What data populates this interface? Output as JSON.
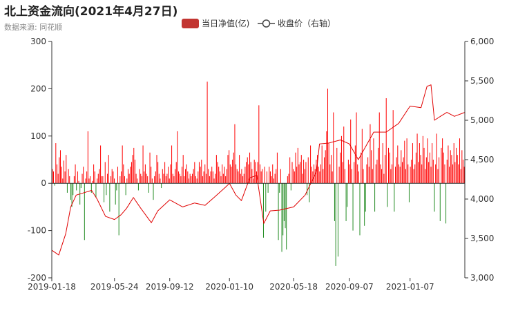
{
  "header": {
    "title": "北上资金流向(2021年4月27日)",
    "subtitle": "数据来源: 同花顺"
  },
  "colors": {
    "positive_bar": "#ff0000",
    "negative_bar": "#228b22",
    "legend_bar": "#c23531",
    "close_line": "#e00000",
    "axis": "#333333"
  },
  "chart_data": {
    "type": "bar",
    "title": "北上资金流向(2021年4月27日)",
    "subtitle": "数据来源: 同花顺",
    "legend": {
      "position": "top-center",
      "items": [
        "当日净值(亿)",
        "收盘价（右轴）"
      ]
    },
    "x_ticks": [
      "2019-01-18",
      "2019-05-24",
      "2019-09-12",
      "2020-01-10",
      "2020-05-18",
      "2020-09-07",
      "2021-01-07"
    ],
    "x_range": [
      "2019-01-18",
      "2021-04-27"
    ],
    "y_left": {
      "min": -200,
      "max": 300,
      "ticks": [
        -200,
        -100,
        0,
        100,
        200,
        300
      ]
    },
    "y_right": {
      "min": 3000,
      "max": 6000,
      "ticks": [
        3000,
        3500,
        4000,
        4500,
        5000,
        5500,
        6000
      ]
    },
    "grid": false,
    "series": [
      {
        "name": "当日净值(亿)",
        "type": "bar",
        "axis": "left",
        "values": [
          30,
          25,
          -5,
          85,
          40,
          20,
          55,
          70,
          35,
          10,
          48,
          25,
          60,
          -20,
          30,
          15,
          -35,
          -50,
          -25,
          15,
          40,
          -15,
          25,
          5,
          -45,
          -10,
          20,
          35,
          -120,
          10,
          25,
          110,
          10,
          15,
          -20,
          5,
          40,
          25,
          -30,
          10,
          20,
          30,
          80,
          15,
          15,
          -40,
          45,
          -25,
          20,
          60,
          -60,
          15,
          30,
          25,
          10,
          -45,
          -15,
          35,
          -110,
          15,
          25,
          80,
          40,
          15,
          -25,
          10,
          30,
          20,
          35,
          45,
          60,
          75,
          50,
          20,
          10,
          -15,
          30,
          20,
          15,
          80,
          25,
          40,
          20,
          15,
          -20,
          65,
          35,
          10,
          -35,
          15,
          25,
          60,
          45,
          20,
          10,
          -10,
          30,
          20,
          45,
          15,
          20,
          35,
          10,
          40,
          80,
          20,
          15,
          30,
          45,
          110,
          25,
          20,
          15,
          35,
          60,
          15,
          30,
          40,
          25,
          10,
          20,
          15,
          20,
          30,
          45,
          15,
          10,
          25,
          45,
          35,
          50,
          15,
          25,
          40,
          20,
          215,
          30,
          15,
          25,
          35,
          25,
          10,
          20,
          60,
          45,
          35,
          25,
          15,
          40,
          20,
          35,
          15,
          30,
          60,
          70,
          40,
          35,
          50,
          65,
          125,
          40,
          30,
          25,
          60,
          20,
          30,
          15,
          20,
          35,
          45,
          55,
          40,
          65,
          45,
          30,
          10,
          50,
          45,
          25,
          45,
          165,
          40,
          25,
          30,
          -115,
          35,
          -60,
          25,
          -20,
          35,
          25,
          15,
          40,
          10,
          20,
          30,
          65,
          -120,
          -20,
          30,
          -145,
          -110,
          -80,
          -95,
          -140,
          15,
          20,
          55,
          -15,
          45,
          30,
          25,
          65,
          35,
          75,
          40,
          45,
          60,
          20,
          50,
          30,
          45,
          -25,
          55,
          -40,
          80,
          35,
          25,
          40,
          30,
          50,
          60,
          35,
          25,
          40,
          80,
          30,
          55,
          70,
          110,
          200,
          85,
          40,
          60,
          25,
          150,
          -80,
          -175,
          75,
          -155,
          35,
          65,
          100,
          45,
          120,
          30,
          -80,
          -50,
          50,
          40,
          135,
          30,
          -100,
          45,
          80,
          150,
          40,
          25,
          -110,
          65,
          115,
          30,
          -90,
          -60,
          40,
          55,
          35,
          125,
          70,
          30,
          95,
          -60,
          40,
          50,
          75,
          150,
          40,
          30,
          85,
          20,
          60,
          180,
          -50,
          75,
          65,
          30,
          40,
          155,
          -60,
          35,
          55,
          80,
          40,
          35,
          70,
          45,
          55,
          90,
          30,
          95,
          40,
          -40,
          35,
          50,
          85,
          30,
          40,
          65,
          105,
          45,
          85,
          60,
          40,
          100,
          75,
          30,
          55,
          95,
          45,
          65,
          35,
          85,
          50,
          -60,
          40,
          105,
          30,
          55,
          -80,
          75,
          95,
          65,
          40,
          -85,
          50,
          80,
          35,
          70,
          60,
          40,
          85,
          45,
          75,
          60,
          40,
          95,
          30,
          70,
          50,
          35
        ]
      },
      {
        "name": "收盘价（右轴）",
        "type": "line",
        "axis": "right",
        "x": [
          "2019-01-18",
          "2019-02-01",
          "2019-02-15",
          "2019-02-25",
          "2019-03-08",
          "2019-04-08",
          "2019-04-19",
          "2019-05-06",
          "2019-05-24",
          "2019-06-06",
          "2019-06-17",
          "2019-07-01",
          "2019-07-15",
          "2019-08-06",
          "2019-08-19",
          "2019-09-12",
          "2019-10-08",
          "2019-11-01",
          "2019-11-22",
          "2019-12-10",
          "2020-01-02",
          "2020-01-10",
          "2020-01-23",
          "2020-02-03",
          "2020-02-20",
          "2020-03-05",
          "2020-03-19",
          "2020-04-01",
          "2020-04-20",
          "2020-05-18",
          "2020-06-10",
          "2020-07-03",
          "2020-07-09",
          "2020-07-27",
          "2020-08-20",
          "2020-09-07",
          "2020-09-25",
          "2020-10-26",
          "2020-11-20",
          "2020-12-15",
          "2021-01-07",
          "2021-01-29",
          "2021-02-10",
          "2021-02-18",
          "2021-02-25",
          "2021-03-09",
          "2021-03-22",
          "2021-04-06",
          "2021-04-27"
        ],
        "values": [
          3350,
          3290,
          3560,
          3900,
          4050,
          4110,
          4000,
          3780,
          3740,
          3800,
          3880,
          4020,
          3890,
          3700,
          3850,
          3990,
          3900,
          3950,
          3920,
          4020,
          4150,
          4200,
          4050,
          3980,
          4270,
          4300,
          3690,
          3850,
          3860,
          3900,
          4050,
          4350,
          4700,
          4710,
          4750,
          4700,
          4500,
          4850,
          4850,
          4960,
          5180,
          5160,
          5430,
          5450,
          5000,
          5050,
          5100,
          5050,
          5100
        ]
      }
    ]
  }
}
